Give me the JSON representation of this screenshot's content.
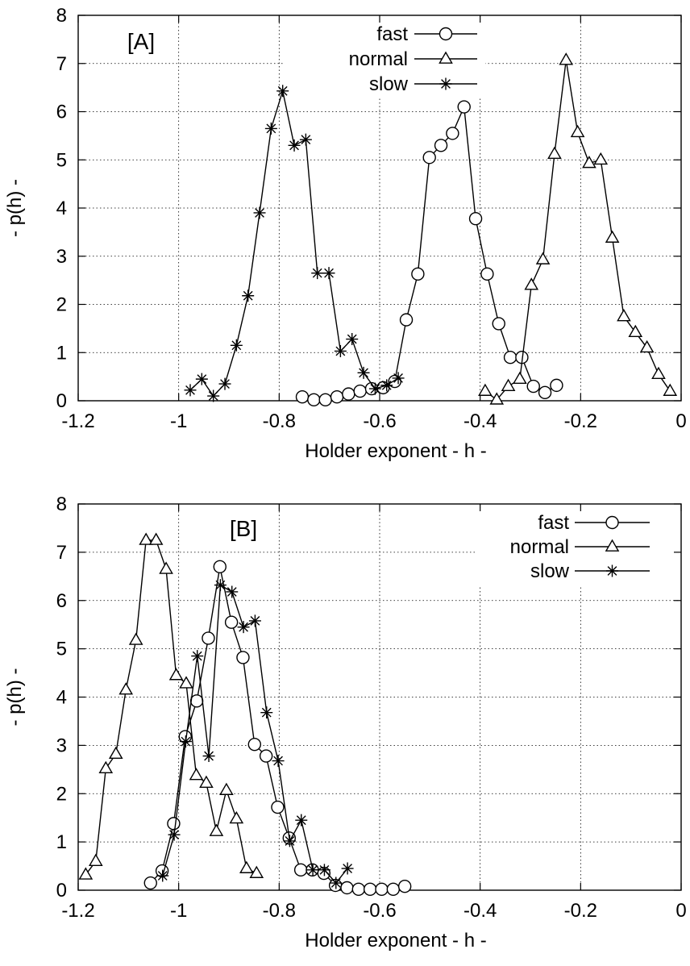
{
  "chart_data": [
    {
      "type": "line",
      "panel_label": "[A]",
      "xlabel": "Holder exponent  - h -",
      "ylabel": "- p(h) -",
      "xlim": [
        -1.2,
        0
      ],
      "ylim": [
        0,
        8
      ],
      "x_ticks": [
        -1.2,
        -1,
        -0.8,
        -0.6,
        -0.4,
        -0.2,
        0
      ],
      "x_tick_labels": [
        "-1.2",
        "-1",
        "-0.8",
        "-0.6",
        "-0.4",
        "-0.2",
        "0"
      ],
      "y_ticks": [
        0,
        1,
        2,
        3,
        4,
        5,
        6,
        7,
        8
      ],
      "y_tick_labels": [
        "0",
        "1",
        "2",
        "3",
        "4",
        "5",
        "6",
        "7",
        "8"
      ],
      "grid": true,
      "legend_position": "top-center",
      "series": [
        {
          "name": "fast",
          "marker": "circle",
          "x": [
            -0.754,
            -0.731,
            -0.708,
            -0.685,
            -0.662,
            -0.639,
            -0.616,
            -0.593,
            -0.57,
            -0.547,
            -0.524,
            -0.501,
            -0.478,
            -0.455,
            -0.432,
            -0.409,
            -0.386,
            -0.363,
            -0.34,
            -0.317,
            -0.294,
            -0.271,
            -0.248,
            -0.225,
            -0.202
          ],
          "y": [
            0.08,
            0.02,
            0.02,
            0.08,
            0.14,
            0.2,
            0.25,
            0.27,
            0.4,
            1.68,
            2.63,
            5.05,
            5.3,
            5.55,
            6.1,
            3.78,
            2.63,
            1.6,
            0.9,
            0.9,
            0.3,
            0.17,
            0.32,
            null,
            null
          ]
        },
        {
          "name": "normal",
          "marker": "triangle",
          "x": [
            -0.39,
            -0.367,
            -0.344,
            -0.321,
            -0.298,
            -0.275,
            -0.252,
            -0.229,
            -0.206,
            -0.183,
            -0.16,
            -0.137,
            -0.114,
            -0.091,
            -0.068,
            -0.045,
            -0.022
          ],
          "y": [
            0.2,
            0.02,
            0.3,
            0.45,
            2.4,
            2.93,
            5.12,
            7.07,
            5.57,
            4.93,
            5.0,
            3.38,
            1.75,
            1.42,
            1.1,
            0.55,
            0.2
          ]
        },
        {
          "name": "slow",
          "marker": "star",
          "x": [
            -0.977,
            -0.954,
            -0.931,
            -0.908,
            -0.885,
            -0.862,
            -0.839,
            -0.816,
            -0.793,
            -0.77,
            -0.747,
            -0.724,
            -0.701,
            -0.678,
            -0.655,
            -0.632,
            -0.609,
            -0.586,
            -0.563,
            -0.54
          ],
          "y": [
            0.22,
            0.45,
            0.1,
            0.35,
            1.15,
            2.18,
            3.9,
            5.65,
            6.43,
            5.3,
            5.42,
            2.65,
            2.65,
            1.03,
            1.28,
            0.58,
            0.25,
            0.32,
            0.47,
            null
          ]
        }
      ]
    },
    {
      "type": "line",
      "panel_label": "[B]",
      "xlabel": "Holder exponent  - h -",
      "ylabel": "- p(h) -",
      "xlim": [
        -1.2,
        0
      ],
      "ylim": [
        0,
        8
      ],
      "x_ticks": [
        -1.2,
        -1,
        -0.8,
        -0.6,
        -0.4,
        -0.2,
        0
      ],
      "x_tick_labels": [
        "-1.2",
        "-1",
        "-0.8",
        "-0.6",
        "-0.4",
        "-0.2",
        "0"
      ],
      "y_ticks": [
        0,
        1,
        2,
        3,
        4,
        5,
        6,
        7,
        8
      ],
      "y_tick_labels": [
        "0",
        "1",
        "2",
        "3",
        "4",
        "5",
        "6",
        "7",
        "8"
      ],
      "grid": true,
      "legend_position": "top-right",
      "series": [
        {
          "name": "fast",
          "marker": "circle",
          "x": [
            -1.056,
            -1.033,
            -1.01,
            -0.987,
            -0.964,
            -0.941,
            -0.918,
            -0.895,
            -0.872,
            -0.849,
            -0.826,
            -0.803,
            -0.78,
            -0.757,
            -0.734,
            -0.711,
            -0.688,
            -0.665,
            -0.642,
            -0.619,
            -0.596,
            -0.573,
            -0.55,
            -0.527
          ],
          "y": [
            0.15,
            0.4,
            1.38,
            3.18,
            3.92,
            5.22,
            6.7,
            5.55,
            4.82,
            3.02,
            2.78,
            1.72,
            1.08,
            0.42,
            0.42,
            0.35,
            0.1,
            0.05,
            0.02,
            0.02,
            0.02,
            0.02,
            0.08,
            null
          ]
        },
        {
          "name": "normal",
          "marker": "triangle",
          "x": [
            -1.185,
            -1.165,
            -1.145,
            -1.125,
            -1.105,
            -1.085,
            -1.065,
            -1.045,
            -1.025,
            -1.005,
            -0.985,
            -0.965,
            -0.945,
            -0.925,
            -0.905,
            -0.885,
            -0.865,
            -0.845
          ],
          "y": [
            0.32,
            0.6,
            2.52,
            2.82,
            4.15,
            5.18,
            7.25,
            7.25,
            6.65,
            4.45,
            4.28,
            2.38,
            2.22,
            1.22,
            2.07,
            1.48,
            0.45,
            0.35
          ]
        },
        {
          "name": "slow",
          "marker": "star",
          "x": [
            -1.032,
            -1.009,
            -0.986,
            -0.963,
            -0.94,
            -0.917,
            -0.894,
            -0.871,
            -0.848,
            -0.825,
            -0.802,
            -0.779,
            -0.756,
            -0.733,
            -0.71,
            -0.687,
            -0.664
          ],
          "y": [
            0.3,
            1.15,
            3.08,
            4.85,
            2.78,
            6.32,
            6.18,
            5.45,
            5.58,
            3.68,
            2.68,
            1.02,
            1.45,
            0.42,
            0.42,
            0.15,
            0.45
          ]
        }
      ]
    }
  ]
}
